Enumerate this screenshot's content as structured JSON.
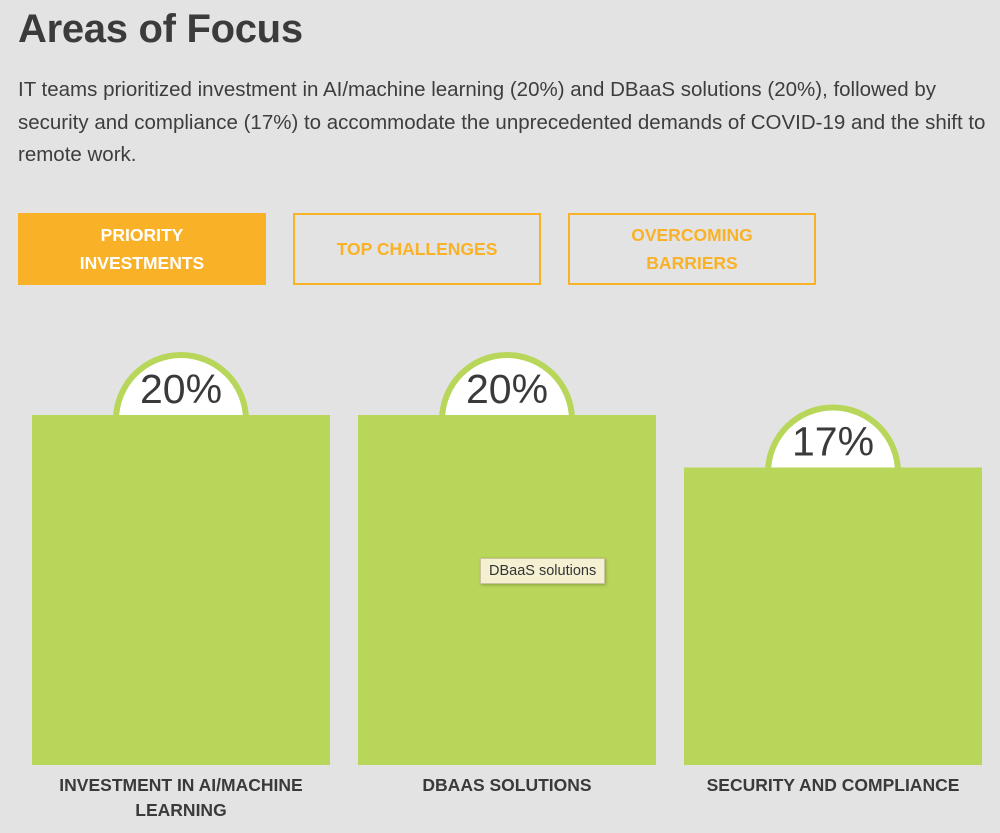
{
  "header": {
    "title": "Areas of Focus",
    "description": "IT teams prioritized investment in AI/machine learning (20%) and DBaaS solutions (20%), followed by security and compliance (17%) to accommodate the unprecedented demands of COVID-19 and the shift to remote work."
  },
  "tabs": [
    {
      "label": "PRIORITY INVESTMENTS",
      "active": true
    },
    {
      "label": "TOP CHALLENGES",
      "active": false
    },
    {
      "label": "OVERCOMING BARRIERS",
      "active": false
    }
  ],
  "tooltip": {
    "text": "DBaaS solutions"
  },
  "colors": {
    "bar": "#b8d65a",
    "accent": "#f9b227",
    "background": "#e3e3e3"
  },
  "chart_data": {
    "type": "bar",
    "categories": [
      "INVESTMENT IN AI/MACHINE LEARNING",
      "DBAAS SOLUTIONS",
      "SECURITY AND COMPLIANCE"
    ],
    "values": [
      20,
      20,
      17
    ],
    "value_labels": [
      "20%",
      "20%",
      "17%"
    ],
    "title": "",
    "xlabel": "",
    "ylabel": "",
    "grid": false
  }
}
